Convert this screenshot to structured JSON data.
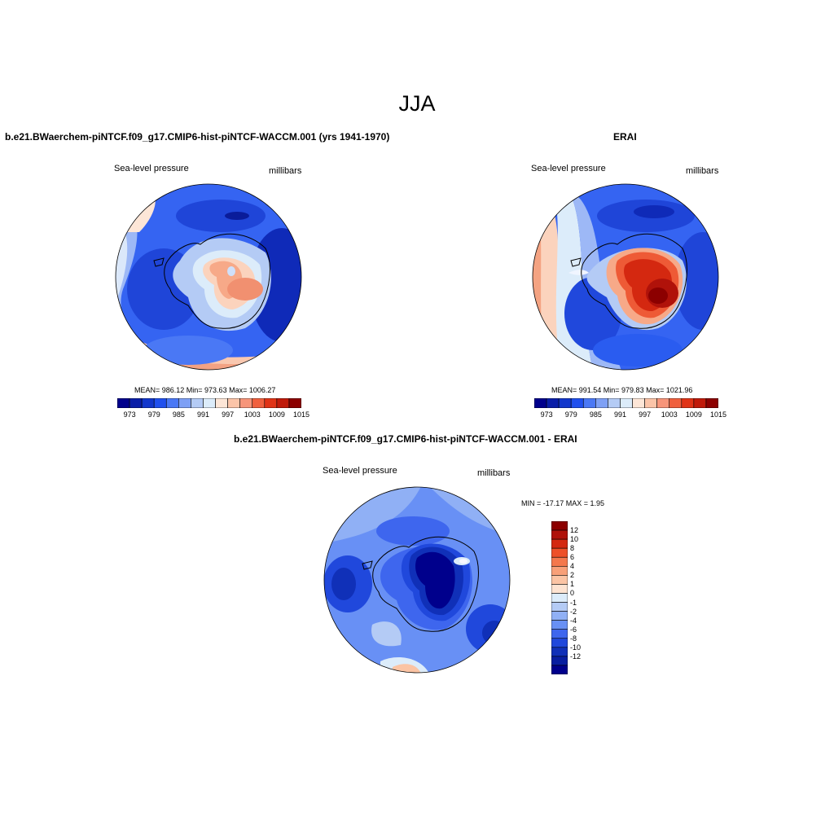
{
  "figure": {
    "title": "JJA",
    "panels": [
      {
        "title": "b.e21.BWaerchem-piNTCF.f09_g17.CMIP6-hist-piNTCF-WACCM.001 (yrs 1941-1970)",
        "left_label": "Sea-level pressure",
        "right_label": "millibars",
        "stats": "MEAN= 986.12  Min= 973.63  Max= 1006.27"
      },
      {
        "title": "ERAI",
        "left_label": "Sea-level pressure",
        "right_label": "millibars",
        "stats": "MEAN= 991.54  Min= 979.83  Max= 1021.96"
      },
      {
        "title": "b.e21.BWaerchem-piNTCF.f09_g17.CMIP6-hist-piNTCF-WACCM.001 - ERAI",
        "left_label": "Sea-level pressure",
        "right_label": "millibars",
        "stats": "MIN = -17.17 MAX =   1.95"
      }
    ]
  },
  "colorbars": {
    "horizontal": {
      "colors": [
        "#00008c",
        "#0a1ea8",
        "#1237cc",
        "#2050ee",
        "#4a78f5",
        "#7ea0f5",
        "#b4cbf5",
        "#dcecfa",
        "#fde6d7",
        "#fbc4a8",
        "#f7957a",
        "#f0603e",
        "#e03316",
        "#c01a0a",
        "#8c0000"
      ],
      "tick_labels": [
        "973",
        "979",
        "985",
        "991",
        "997",
        "1003",
        "1009",
        "1015"
      ]
    },
    "vertical": {
      "colors": [
        "#8c0000",
        "#b0120a",
        "#d42810",
        "#ee5028",
        "#f4784c",
        "#f8a078",
        "#fbc4a4",
        "#fde3d1",
        "#dcecfa",
        "#b4cbf5",
        "#90b0f5",
        "#6890f5",
        "#3e66ee",
        "#2048dc",
        "#1030b8",
        "#081ea0",
        "#00008c"
      ],
      "tick_labels": [
        "12",
        "10",
        "8",
        "6",
        "4",
        "2",
        "1",
        "0",
        "-1",
        "-2",
        "-4",
        "-6",
        "-8",
        "-10",
        "-12"
      ]
    }
  },
  "chart_data": [
    {
      "type": "heatmap",
      "title": "b.e21.BWaerchem-piNTCF.f09_g17.CMIP6-hist-piNTCF-WACCM.001 (yrs 1941-1970)",
      "variable": "Sea-level pressure",
      "units": "millibars",
      "projection": "south polar stereographic",
      "mean": 986.12,
      "min": 973.63,
      "max": 1006.27,
      "contour_levels": [
        973,
        976,
        979,
        982,
        985,
        988,
        991,
        994,
        997,
        1000,
        1003,
        1006,
        1009,
        1012,
        1015
      ]
    },
    {
      "type": "heatmap",
      "title": "ERAI",
      "variable": "Sea-level pressure",
      "units": "millibars",
      "projection": "south polar stereographic",
      "mean": 991.54,
      "min": 979.83,
      "max": 1021.96,
      "contour_levels": [
        973,
        976,
        979,
        982,
        985,
        988,
        991,
        994,
        997,
        1000,
        1003,
        1006,
        1009,
        1012,
        1015
      ]
    },
    {
      "type": "heatmap",
      "title": "b.e21.BWaerchem-piNTCF.f09_g17.CMIP6-hist-piNTCF-WACCM.001 - ERAI",
      "variable": "Sea-level pressure",
      "units": "millibars",
      "projection": "south polar stereographic",
      "min": -17.17,
      "max": 1.95,
      "contour_levels": [
        -12,
        -10,
        -8,
        -6,
        -4,
        -2,
        -1,
        0,
        1,
        2,
        4,
        6,
        8,
        10,
        12
      ]
    }
  ]
}
